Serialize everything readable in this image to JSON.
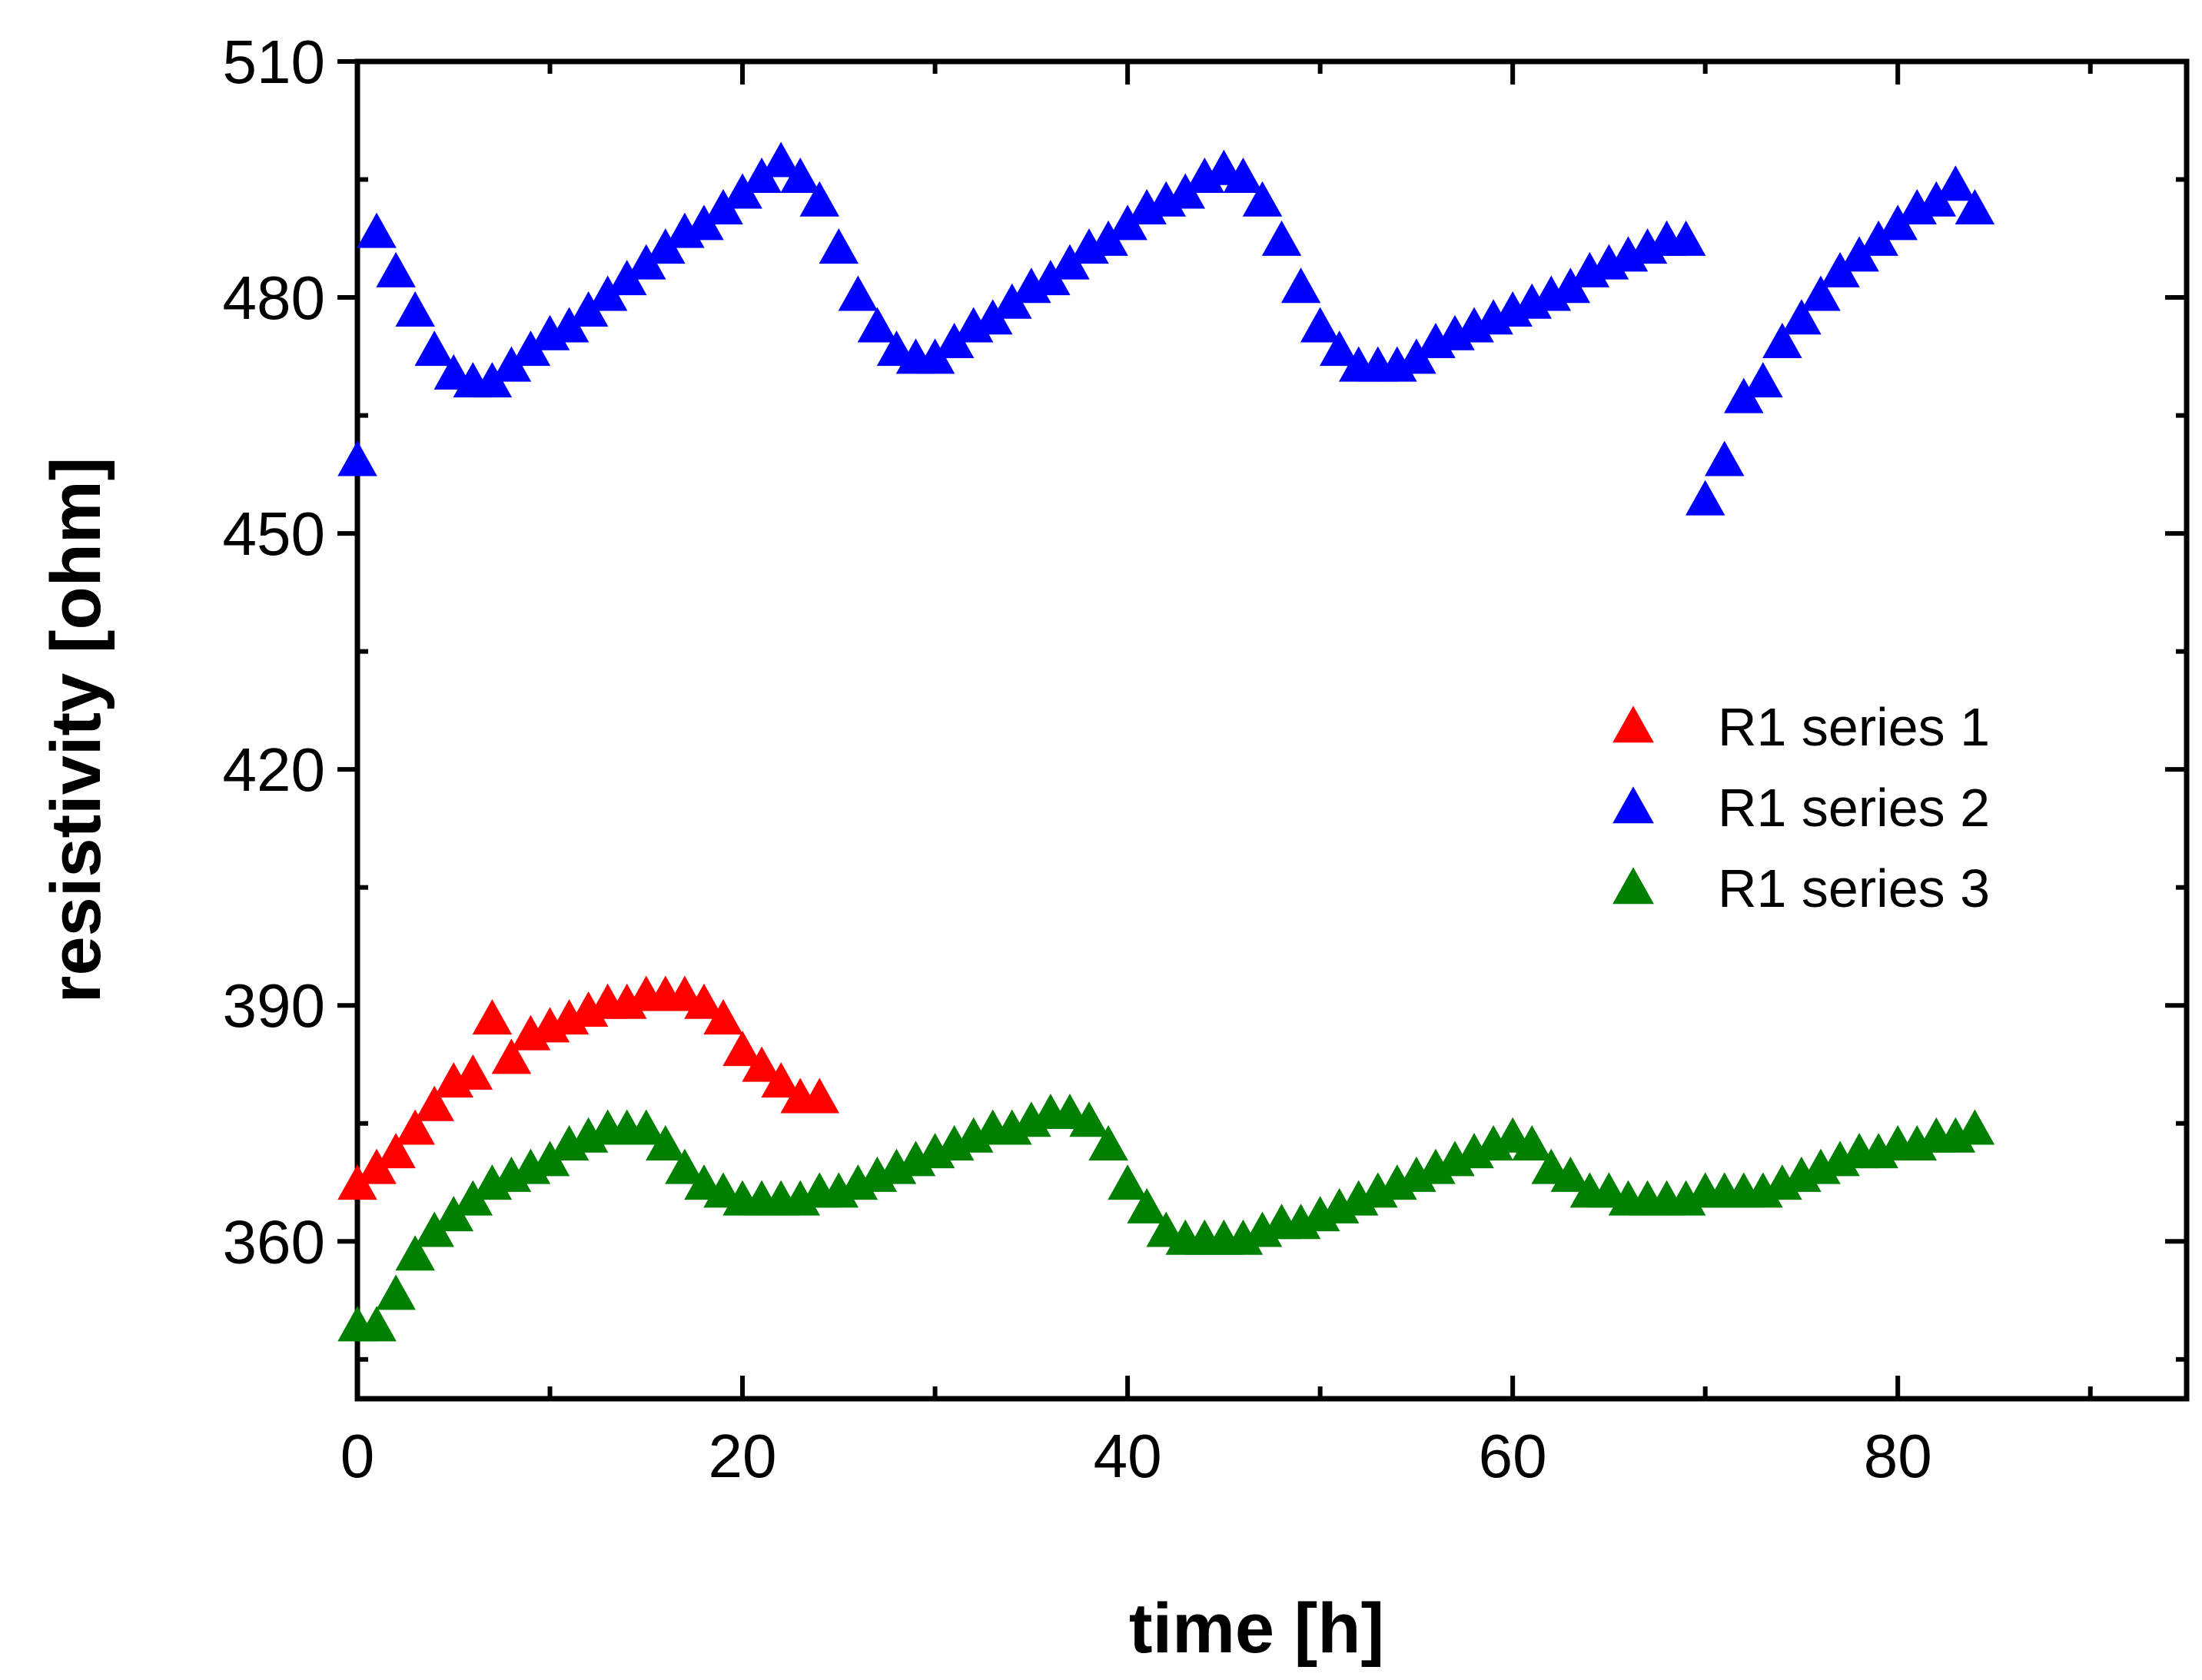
{
  "chart_data": {
    "type": "scatter",
    "title": "",
    "xlabel": "time [h]",
    "ylabel": "resistivity [ohm]",
    "xlim": [
      0,
      95
    ],
    "ylim": [
      340,
      510
    ],
    "xticks": [
      0,
      20,
      40,
      60,
      80
    ],
    "yticks": [
      360,
      390,
      420,
      450,
      480,
      510
    ],
    "grid": false,
    "legend_position": "right-middle",
    "marker": "triangle",
    "series": [
      {
        "name": "R1 series 1",
        "color": "#ff0000",
        "x": [
          0,
          1,
          2,
          3,
          4,
          5,
          6,
          7,
          8,
          9,
          10,
          11,
          12,
          13,
          14,
          15,
          16,
          17,
          18,
          19,
          20,
          21,
          22,
          23,
          24
        ],
        "y": [
          367,
          369,
          371,
          374,
          377,
          380,
          381,
          388,
          383,
          386,
          387,
          388,
          389,
          390,
          390,
          391,
          391,
          391,
          390,
          388,
          384,
          382,
          380,
          378,
          378
        ]
      },
      {
        "name": "R1 series 2",
        "color": "#0000ff",
        "x": [
          0,
          1,
          2,
          3,
          4,
          5,
          6,
          7,
          8,
          9,
          10,
          11,
          12,
          13,
          14,
          15,
          16,
          17,
          18,
          19,
          20,
          21,
          22,
          23,
          24,
          25,
          26,
          27,
          28,
          29,
          30,
          31,
          32,
          33,
          34,
          35,
          36,
          37,
          38,
          39,
          40,
          41,
          42,
          43,
          44,
          45,
          46,
          47,
          48,
          49,
          50,
          51,
          52,
          53,
          54,
          55,
          56,
          57,
          58,
          59,
          60,
          61,
          62,
          63,
          64,
          65,
          66,
          67,
          68,
          69,
          70,
          71,
          72,
          73,
          74,
          75,
          76,
          77,
          78,
          79,
          80,
          81,
          82,
          83,
          84
        ],
        "y": [
          459,
          488,
          483,
          478,
          473,
          470,
          469,
          469,
          471,
          473,
          475,
          476,
          478,
          480,
          482,
          484,
          486,
          488,
          489,
          491,
          493,
          495,
          497,
          495,
          492,
          486,
          480,
          476,
          473,
          472,
          472,
          474,
          476,
          477,
          479,
          481,
          482,
          484,
          486,
          487,
          489,
          491,
          492,
          493,
          495,
          496,
          495,
          492,
          487,
          481,
          476,
          473,
          471,
          471,
          471,
          472,
          474,
          475,
          476,
          477,
          478,
          479,
          480,
          481,
          483,
          484,
          485,
          486,
          487,
          487,
          454,
          459,
          467,
          469,
          474,
          477,
          480,
          483,
          485,
          487,
          489,
          491,
          492,
          494,
          491
        ]
      },
      {
        "name": "R1 series 3",
        "color": "#008000",
        "x": [
          0,
          1,
          2,
          3,
          4,
          5,
          6,
          7,
          8,
          9,
          10,
          11,
          12,
          13,
          14,
          15,
          16,
          17,
          18,
          19,
          20,
          21,
          22,
          23,
          24,
          25,
          26,
          27,
          28,
          29,
          30,
          31,
          32,
          33,
          34,
          35,
          36,
          37,
          38,
          39,
          40,
          41,
          42,
          43,
          44,
          45,
          46,
          47,
          48,
          49,
          50,
          51,
          52,
          53,
          54,
          55,
          56,
          57,
          58,
          59,
          60,
          61,
          62,
          63,
          64,
          65,
          66,
          67,
          68,
          69,
          70,
          71,
          72,
          73,
          74,
          75,
          76,
          77,
          78,
          79,
          80,
          81,
          82,
          83,
          84
        ],
        "y": [
          349,
          349,
          353,
          358,
          361,
          363,
          365,
          367,
          368,
          369,
          370,
          372,
          373,
          374,
          374,
          374,
          372,
          369,
          367,
          366,
          365,
          365,
          365,
          365,
          366,
          366,
          367,
          368,
          369,
          370,
          371,
          372,
          373,
          374,
          374,
          375,
          376,
          376,
          375,
          372,
          367,
          364,
          361,
          360,
          360,
          360,
          360,
          361,
          362,
          362,
          363,
          364,
          365,
          366,
          367,
          368,
          369,
          370,
          371,
          372,
          373,
          372,
          369,
          368,
          366,
          366,
          365,
          365,
          365,
          365,
          366,
          366,
          366,
          366,
          367,
          368,
          369,
          370,
          371,
          371,
          372,
          372,
          373,
          373,
          374
        ]
      }
    ]
  }
}
